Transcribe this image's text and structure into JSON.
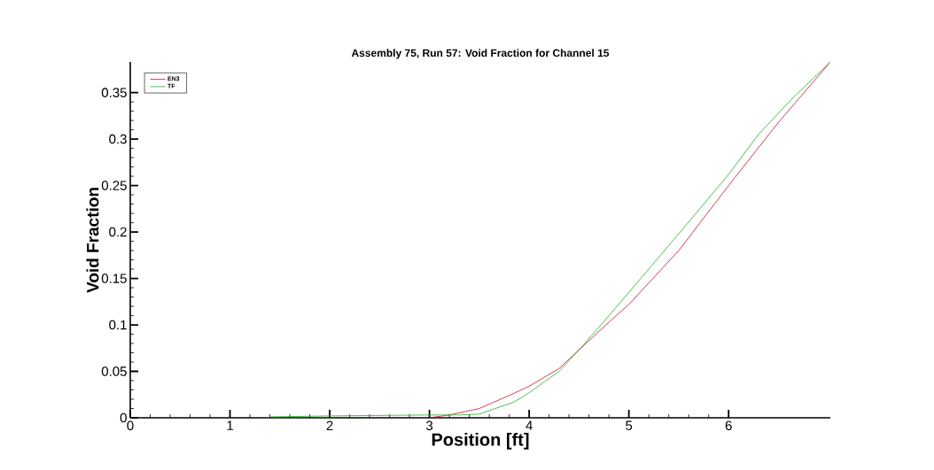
{
  "chart_data": {
    "type": "line",
    "title": "Assembly 75, Run 57: Void Fraction for Channel 15",
    "xlabel": "Position [ft]",
    "ylabel": "Void Fraction",
    "xlim": [
      0,
      7.02
    ],
    "ylim": [
      0,
      0.383
    ],
    "xticks": [
      0,
      1,
      2,
      3,
      4,
      5,
      6
    ],
    "yticks": [
      0,
      0.05,
      0.1,
      0.15,
      0.2,
      0.25,
      0.3,
      0.35
    ],
    "grid": false,
    "legend": "top left",
    "marker": "none",
    "line_style": "solid",
    "series": [
      {
        "name": "EN3",
        "color": "#c8102e",
        "x": [
          3,
          3.2,
          3.5,
          3.8,
          4,
          4.3,
          4.55,
          4.8,
          5,
          5.5,
          6,
          6.5,
          7.02
        ],
        "values": [
          0,
          0.003,
          0.01,
          0.024,
          0.034,
          0.053,
          0.078,
          0.103,
          0.122,
          0.18,
          0.25,
          0.318,
          0.383
        ]
      },
      {
        "name": "TF",
        "color": "#22b022",
        "x": [
          1.4,
          2,
          3,
          3.3,
          3.5,
          3.85,
          4,
          4.3,
          4.55,
          4.8,
          5,
          5.5,
          6,
          6.3,
          6.65,
          7.02
        ],
        "values": [
          0.001,
          0.002,
          0.003,
          0.003,
          0.004,
          0.017,
          0.027,
          0.05,
          0.079,
          0.11,
          0.135,
          0.198,
          0.262,
          0.305,
          0.345,
          0.383
        ]
      }
    ]
  }
}
